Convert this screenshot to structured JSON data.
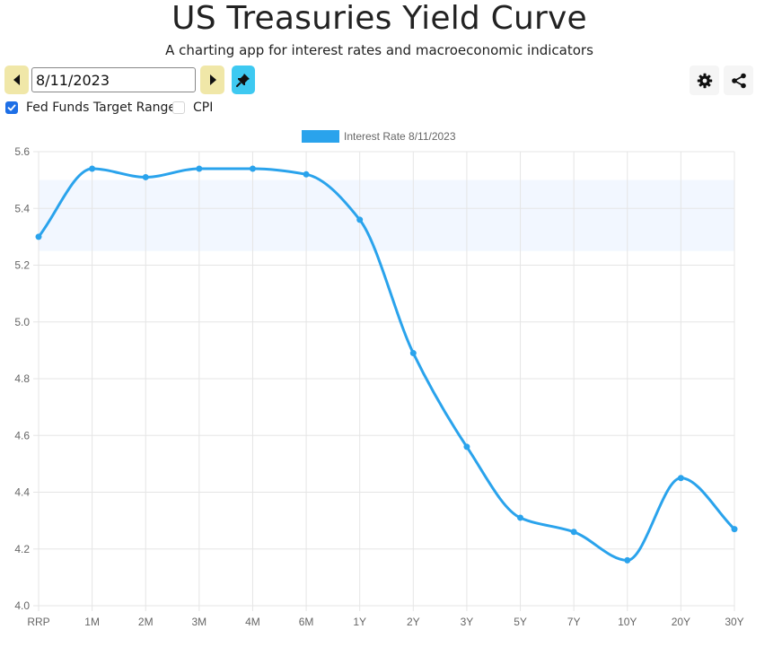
{
  "header": {
    "title": "US Treasuries Yield Curve",
    "subtitle": "A charting app for interest rates and macroeconomic indicators"
  },
  "controls": {
    "prev_icon": "chevron-left-icon",
    "next_icon": "chevron-right-icon",
    "date_value": "8/11/2023",
    "pin_icon": "pin-icon",
    "settings_icon": "gear-icon",
    "share_icon": "share-icon",
    "checkboxes": [
      {
        "label": "Fed Funds Target Range",
        "checked": true
      },
      {
        "label": "CPI",
        "checked": false
      }
    ]
  },
  "colors": {
    "line": "#2aa3ec",
    "band": "#f2f7ff",
    "arrow_button": "#f0e7a8",
    "pin_button": "#3ec9f1",
    "checkbox_checked": "#1e6fe6"
  },
  "chart_data": {
    "type": "line",
    "title": "",
    "xlabel": "",
    "ylabel": "",
    "categories": [
      "RRP",
      "1M",
      "2M",
      "3M",
      "4M",
      "6M",
      "1Y",
      "2Y",
      "3Y",
      "5Y",
      "7Y",
      "10Y",
      "20Y",
      "30Y"
    ],
    "series": [
      {
        "name": "Interest Rate 8/11/2023",
        "values": [
          5.3,
          5.54,
          5.51,
          5.54,
          5.54,
          5.52,
          5.36,
          4.89,
          4.56,
          4.31,
          4.26,
          4.16,
          4.45,
          4.27
        ]
      }
    ],
    "band": {
      "label": "Fed Funds Target Range",
      "low": 5.25,
      "high": 5.5
    },
    "ylim": [
      4.0,
      5.6
    ],
    "yticks": [
      4.0,
      4.2,
      4.4,
      4.6,
      4.8,
      5.0,
      5.2,
      5.4,
      5.6
    ],
    "ytick_labels": [
      "4.0",
      "4.2",
      "4.4",
      "4.6",
      "4.8",
      "5.0",
      "5.2",
      "5.4",
      "5.6"
    ],
    "grid": true,
    "legend": "top"
  }
}
